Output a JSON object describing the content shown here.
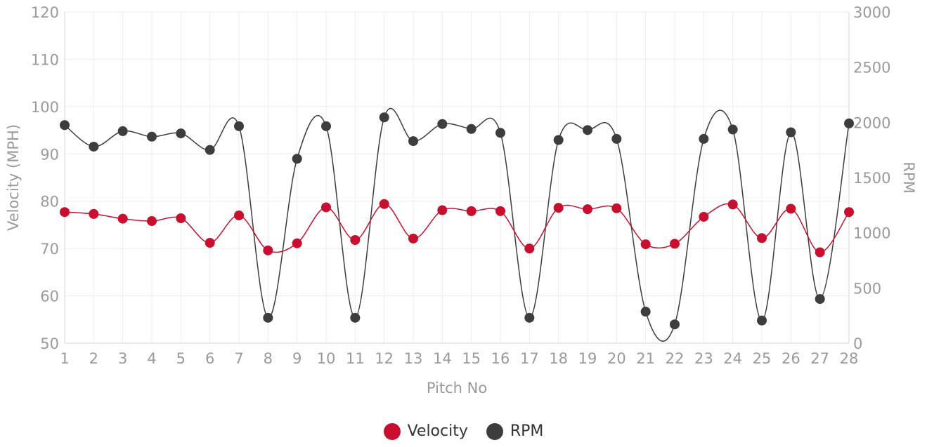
{
  "chart_data": {
    "type": "line",
    "x": [
      1,
      2,
      3,
      4,
      5,
      6,
      7,
      8,
      9,
      10,
      11,
      12,
      13,
      14,
      15,
      16,
      17,
      18,
      19,
      20,
      21,
      22,
      23,
      24,
      25,
      26,
      27,
      28
    ],
    "xlabel": "Pitch No",
    "ylabel_left": "Velocity (MPH)",
    "ylabel_right": "RPM",
    "ylim_left": [
      50,
      120
    ],
    "ylim_right": [
      0,
      3000
    ],
    "yticks_left": [
      50,
      60,
      70,
      80,
      90,
      100,
      110,
      120
    ],
    "yticks_right": [
      0,
      500,
      1000,
      1500,
      2000,
      2500,
      3000
    ],
    "grid": true,
    "legend_position": "bottom-center",
    "series": [
      {
        "name": "Velocity",
        "axis": "left",
        "color": "#c8102e",
        "values": [
          77.7,
          77.3,
          76.3,
          75.8,
          76.4,
          71.2,
          77.0,
          69.6,
          71.1,
          78.7,
          71.8,
          79.4,
          72.1,
          78.1,
          77.9,
          77.9,
          70.0,
          78.6,
          78.3,
          78.5,
          70.9,
          71.0,
          76.7,
          79.3,
          72.2,
          78.4,
          69.2,
          77.7
        ]
      },
      {
        "name": "RPM",
        "axis": "right",
        "color": "#3d3d3d",
        "values": [
          1975,
          1780,
          1920,
          1870,
          1900,
          1750,
          1965,
          230,
          1670,
          1965,
          230,
          2045,
          1830,
          1985,
          1940,
          1905,
          230,
          1840,
          1930,
          1850,
          285,
          170,
          1850,
          1935,
          205,
          1910,
          400,
          1990
        ]
      }
    ]
  }
}
